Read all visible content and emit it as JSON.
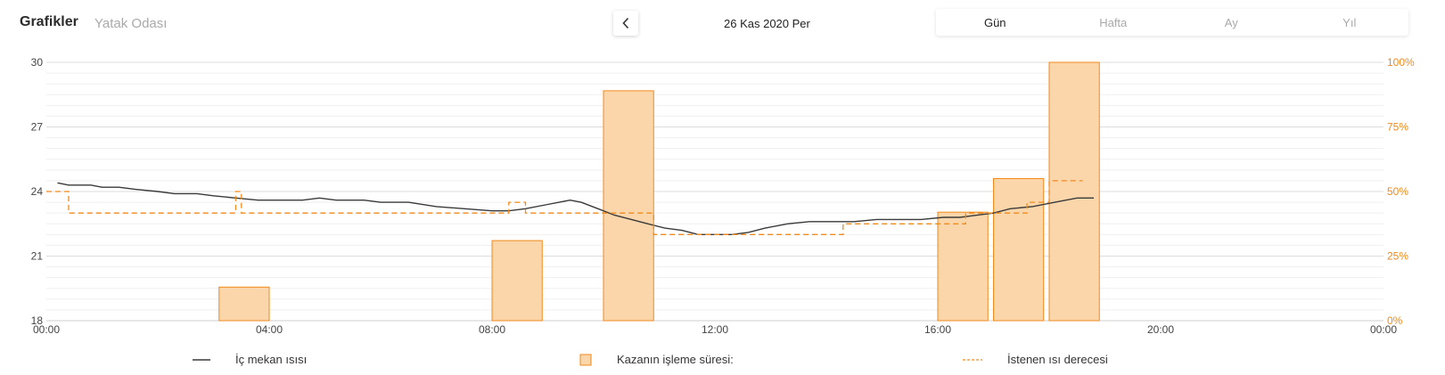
{
  "header": {
    "title": "Grafikler",
    "subtitle": "Yatak Odası",
    "date": "26 Kas 2020 Per",
    "tabs": [
      {
        "label": "Gün",
        "active": true
      },
      {
        "label": "Hafta",
        "active": false
      },
      {
        "label": "Ay",
        "active": false
      },
      {
        "label": "Yıl",
        "active": false
      }
    ]
  },
  "icons": {
    "prev": "chevron-left-icon"
  },
  "colors": {
    "accent": "#f08a1c",
    "bar_fill": "#fcd6ab",
    "line": "#3a3a3a",
    "grid": "#e6e6e6"
  },
  "legend": [
    {
      "label": "İç mekan ısısı",
      "type": "line"
    },
    {
      "label": "Kazanın işleme süresi:",
      "type": "box"
    },
    {
      "label": "İstenen ısı derecesi",
      "type": "dashed"
    }
  ],
  "chart_data": {
    "type": "combo",
    "x_unit": "hours",
    "xlim": [
      0,
      24
    ],
    "x_ticks": [
      "00:00",
      "04:00",
      "08:00",
      "12:00",
      "16:00",
      "20:00",
      "00:00"
    ],
    "y_left": {
      "ticks": [
        "30",
        "27",
        "24",
        "21",
        "18"
      ],
      "ylim": [
        18,
        30
      ]
    },
    "y_right": {
      "ticks": [
        "100%",
        "75%",
        "50%",
        "25%",
        "0%"
      ],
      "ylim": [
        0,
        100
      ]
    },
    "grid": true,
    "series": [
      {
        "name": "İç mekan ısısı",
        "kind": "line",
        "axis": "left",
        "points": [
          [
            0.2,
            24.4
          ],
          [
            0.4,
            24.3
          ],
          [
            0.6,
            24.3
          ],
          [
            0.8,
            24.3
          ],
          [
            1.0,
            24.2
          ],
          [
            1.3,
            24.2
          ],
          [
            1.6,
            24.1
          ],
          [
            2.0,
            24.0
          ],
          [
            2.3,
            23.9
          ],
          [
            2.7,
            23.9
          ],
          [
            3.0,
            23.8
          ],
          [
            3.4,
            23.7
          ],
          [
            3.8,
            23.6
          ],
          [
            4.2,
            23.6
          ],
          [
            4.6,
            23.6
          ],
          [
            4.9,
            23.7
          ],
          [
            5.2,
            23.6
          ],
          [
            5.7,
            23.6
          ],
          [
            6.0,
            23.5
          ],
          [
            6.5,
            23.5
          ],
          [
            7.0,
            23.3
          ],
          [
            7.5,
            23.2
          ],
          [
            8.0,
            23.1
          ],
          [
            8.3,
            23.1
          ],
          [
            8.6,
            23.2
          ],
          [
            9.0,
            23.4
          ],
          [
            9.4,
            23.6
          ],
          [
            9.6,
            23.5
          ],
          [
            9.9,
            23.2
          ],
          [
            10.2,
            22.9
          ],
          [
            10.5,
            22.7
          ],
          [
            10.8,
            22.5
          ],
          [
            11.1,
            22.3
          ],
          [
            11.4,
            22.2
          ],
          [
            11.7,
            22.0
          ],
          [
            12.0,
            22.0
          ],
          [
            12.3,
            22.0
          ],
          [
            12.6,
            22.1
          ],
          [
            12.9,
            22.3
          ],
          [
            13.3,
            22.5
          ],
          [
            13.7,
            22.6
          ],
          [
            14.1,
            22.6
          ],
          [
            14.5,
            22.6
          ],
          [
            14.9,
            22.7
          ],
          [
            15.3,
            22.7
          ],
          [
            15.7,
            22.7
          ],
          [
            16.1,
            22.8
          ],
          [
            16.4,
            22.8
          ],
          [
            16.7,
            22.9
          ],
          [
            17.0,
            23.0
          ],
          [
            17.3,
            23.2
          ],
          [
            17.7,
            23.3
          ],
          [
            18.1,
            23.5
          ],
          [
            18.5,
            23.7
          ],
          [
            18.8,
            23.7
          ]
        ]
      },
      {
        "name": "Kazanın işleme süresi:",
        "kind": "bar",
        "axis": "right",
        "bars": [
          {
            "start": 3.1,
            "end": 4.0,
            "value": 13
          },
          {
            "start": 8.0,
            "end": 8.9,
            "value": 31
          },
          {
            "start": 10.0,
            "end": 10.9,
            "value": 89
          },
          {
            "start": 16.0,
            "end": 16.9,
            "value": 42
          },
          {
            "start": 17.0,
            "end": 17.9,
            "value": 55
          },
          {
            "start": 18.0,
            "end": 18.9,
            "value": 100
          }
        ]
      },
      {
        "name": "İstenen ısı derecesi",
        "kind": "step",
        "axis": "left",
        "points": [
          [
            0.0,
            24.0
          ],
          [
            0.4,
            24.0
          ],
          [
            0.4,
            23.0
          ],
          [
            3.4,
            23.0
          ],
          [
            3.4,
            24.0
          ],
          [
            3.5,
            24.0
          ],
          [
            3.5,
            23.0
          ],
          [
            8.3,
            23.0
          ],
          [
            8.3,
            23.5
          ],
          [
            8.6,
            23.5
          ],
          [
            8.6,
            23.0
          ],
          [
            10.9,
            23.0
          ],
          [
            10.9,
            22.0
          ],
          [
            14.3,
            22.0
          ],
          [
            14.3,
            22.5
          ],
          [
            16.5,
            22.5
          ],
          [
            16.5,
            23.0
          ],
          [
            17.6,
            23.0
          ],
          [
            17.6,
            23.5
          ],
          [
            18.0,
            23.5
          ],
          [
            18.0,
            24.5
          ],
          [
            18.6,
            24.5
          ]
        ]
      }
    ]
  }
}
